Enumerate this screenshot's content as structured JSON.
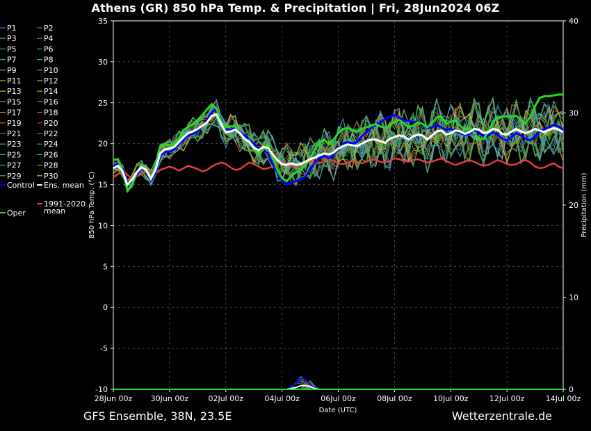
{
  "title": "Athens  (GR)  850 hPa Temp. & Precipitation | Fri, 28Jun2024 06Z",
  "footer": {
    "left": "GFS Ensemble, 38N, 23.5E",
    "right": "Wetterzentrale.de"
  },
  "chart_data": {
    "type": "line",
    "xlabel": "Date (UTC)",
    "ylabel": "850 hPa Temp. (°C)",
    "y2label": "Precipitation (mm)",
    "ylim": [
      -10,
      35
    ],
    "y2lim": [
      0,
      40
    ],
    "yticks": [
      -10,
      -5,
      0,
      5,
      10,
      15,
      20,
      25,
      30,
      35
    ],
    "y2ticks": [
      0,
      10,
      20,
      30,
      40
    ],
    "xlim": [
      0,
      96
    ],
    "xticks": [
      {
        "t": 0,
        "label": "28Jun 00z"
      },
      {
        "t": 12,
        "label": "30Jun 00z"
      },
      {
        "t": 24,
        "label": "02Jul 00z"
      },
      {
        "t": 36,
        "label": "04Jul 00z"
      },
      {
        "t": 48,
        "label": "06Jul 00z"
      },
      {
        "t": 60,
        "label": "08Jul 00z"
      },
      {
        "t": 72,
        "label": "10Jul 00z"
      },
      {
        "t": 84,
        "label": "12Jul 00z"
      },
      {
        "t": 96,
        "label": "14Jul 00z"
      }
    ],
    "grid": true,
    "legend_position": "left",
    "colors": {
      "control": "#0000ff",
      "ens_mean": "#ffffff",
      "clim": "#e04040",
      "oper": "#22dd22",
      "perturbed": [
        "#3a6fe0",
        "#3f7fc8",
        "#2fa8a8",
        "#2f9f9f",
        "#38b0b0",
        "#2fb090",
        "#30c070",
        "#3cc048",
        "#40d040",
        "#30c030",
        "#c0c040",
        "#d0b040",
        "#d8b020",
        "#d89a30",
        "#d09070",
        "#c87050",
        "#e07a3a",
        "#c85a28",
        "#e04a3a",
        "#c03838",
        "#3a78d8",
        "#2a88c0",
        "#3ab0c8",
        "#2aa8b0",
        "#2ab898",
        "#30b878",
        "#2ab858",
        "#38c050",
        "#48c040",
        "#d8c030"
      ]
    },
    "legend": [
      {
        "label": "P1"
      },
      {
        "label": "P2"
      },
      {
        "label": "P3"
      },
      {
        "label": "P4"
      },
      {
        "label": "P5"
      },
      {
        "label": "P6"
      },
      {
        "label": "P7"
      },
      {
        "label": "P8"
      },
      {
        "label": "P9"
      },
      {
        "label": "P10"
      },
      {
        "label": "P11"
      },
      {
        "label": "P12"
      },
      {
        "label": "P13"
      },
      {
        "label": "P14"
      },
      {
        "label": "P15"
      },
      {
        "label": "P16"
      },
      {
        "label": "P17"
      },
      {
        "label": "P18"
      },
      {
        "label": "P19"
      },
      {
        "label": "P20"
      },
      {
        "label": "P21"
      },
      {
        "label": "P22"
      },
      {
        "label": "P23"
      },
      {
        "label": "P24"
      },
      {
        "label": "P25"
      },
      {
        "label": "P26"
      },
      {
        "label": "P27"
      },
      {
        "label": "P28"
      },
      {
        "label": "P29"
      },
      {
        "label": "P30"
      },
      {
        "label": "Control"
      },
      {
        "label": "Ens. mean"
      },
      {
        "label": "1991-2020\nmean"
      },
      {
        "label": "Oper"
      }
    ],
    "ens_mean": [
      17,
      17.3,
      16.6,
      15,
      15.6,
      16.5,
      17.1,
      16.8,
      15.7,
      16.8,
      18.8,
      19.3,
      19.4,
      19.6,
      20.2,
      20.8,
      21.3,
      21.5,
      21.8,
      22.2,
      22.6,
      23.4,
      23.6,
      22.4,
      21.4,
      21.5,
      21.7,
      21.3,
      20.6,
      20.2,
      19.5,
      19.2,
      19.6,
      19.5,
      18.7,
      18,
      17.5,
      17.4,
      17.6,
      17.4,
      17.5,
      17.8,
      18.1,
      18.3,
      18.6,
      18.8,
      18.7,
      18.9,
      19.4,
      19.7,
      19.9,
      19.8,
      19.7,
      20,
      20.3,
      20.5,
      20.5,
      20.3,
      20.1,
      20.6,
      20.8,
      21,
      20.9,
      20.5,
      20.9,
      21.1,
      21,
      20.5,
      21,
      21.5,
      21.6,
      21.1,
      21.3,
      21.6,
      21.5,
      21.2,
      21.4,
      21.8,
      21.7,
      21.3,
      21.4,
      21.8,
      21.7,
      21.2,
      21.1,
      21.5,
      21.8,
      21.5,
      21.3,
      21.5,
      21.8,
      21.6,
      21.4,
      21.7,
      21.9,
      21.7,
      21.4
    ],
    "control": [
      17.2,
      17.6,
      16.9,
      15.2,
      15.5,
      16.2,
      17,
      16.8,
      15.5,
      16.4,
      18.5,
      19,
      19,
      19.3,
      20,
      20.5,
      21,
      21.2,
      21.5,
      22.2,
      22.8,
      23.8,
      24.3,
      23,
      21.8,
      21.7,
      21.9,
      21.4,
      21,
      20.5,
      20,
      19.3,
      19.2,
      18.8,
      17.6,
      16.5,
      15.5,
      15,
      15.3,
      15.4,
      15.6,
      16,
      16.8,
      17.7,
      18.2,
      18.5,
      18.2,
      18.6,
      19.3,
      20,
      20.2,
      20,
      20.2,
      20.9,
      21.4,
      21.9,
      22.3,
      22.6,
      23,
      23.3,
      23.5,
      23.2,
      22.8,
      22.8,
      22.6,
      22.7,
      22.4,
      21.9,
      22,
      22.3,
      22,
      21.7,
      21.8,
      21.5,
      21.3,
      21.1,
      21.2,
      21.6,
      21.4,
      20.9,
      21,
      21.4,
      21.1,
      20.6,
      20.4,
      20.8,
      21.3,
      21,
      20.6,
      20.4,
      20.9,
      21.5,
      21.8,
      22,
      22.3,
      22.1,
      21.7
    ],
    "oper": [
      18,
      18.1,
      16.6,
      14.3,
      15,
      16.5,
      17.3,
      16.6,
      15.8,
      17.5,
      19.7,
      20,
      19.8,
      19.9,
      20.7,
      21.7,
      22,
      22.4,
      22.9,
      23.5,
      24.2,
      24.8,
      24.3,
      22.8,
      22,
      22.1,
      22.1,
      21.1,
      20.5,
      20.4,
      19.3,
      18.7,
      19.3,
      20,
      18.3,
      16.8,
      15.8,
      15.4,
      16.1,
      16.5,
      16.8,
      17.4,
      18.2,
      19.3,
      20.1,
      20.5,
      19.9,
      20.5,
      21.3,
      21.8,
      21.9,
      21.6,
      21.5,
      21.8,
      22,
      22.2,
      22.4,
      22.1,
      21.9,
      22.2,
      22.7,
      22.9,
      22.5,
      22,
      22.2,
      22.6,
      22.4,
      22,
      22.5,
      23.2,
      23.3,
      22.4,
      22.7,
      22.8,
      22.2,
      21.7,
      21.9,
      21.4,
      20.5,
      20.6,
      21.5,
      22.6,
      23.2,
      23.3,
      23.3,
      23.3,
      23.4,
      22.9,
      22.5,
      23.3,
      24.6,
      25.6,
      25.8,
      25.8,
      25.9,
      26,
      26
    ],
    "clim": [
      15.9,
      16.3,
      16.7,
      16.2,
      15.7,
      16,
      16.3,
      16.7,
      16.5,
      16.3,
      16.8,
      17,
      17.2,
      17,
      16.7,
      17,
      17.3,
      17.1,
      16.9,
      16.6,
      16.8,
      17.2,
      17.5,
      17.7,
      17.5,
      17.1,
      16.8,
      16.9,
      17.3,
      17.7,
      17.5,
      17.2,
      16.9,
      17,
      17.2,
      17.5,
      17.7,
      17.5,
      17.2,
      17.3,
      17.4,
      17.6,
      17.8,
      17.7,
      17.6,
      17.9,
      18.1,
      17.9,
      17.6,
      17.5,
      17.7,
      17.9,
      17.8,
      17.6,
      17.8,
      18.1,
      18,
      17.8,
      17.7,
      17.9,
      18.2,
      18.1,
      17.9,
      17.8,
      18,
      18.1,
      17.9,
      17.7,
      17.8,
      18,
      18.2,
      17.9,
      17.6,
      17.4,
      17.6,
      17.8,
      18,
      17.8,
      17.5,
      17.3,
      17.4,
      17.7,
      18,
      17.8,
      17.5,
      17.4,
      17.5,
      17.8,
      18,
      17.7,
      17.2,
      17,
      17.1,
      17.4,
      17.6,
      17.2,
      17
    ],
    "precip": {
      "mean": [
        0,
        0,
        0,
        0,
        0,
        0,
        0,
        0,
        0,
        0,
        0,
        0,
        0,
        0,
        0,
        0,
        0,
        0,
        0,
        0,
        0,
        0,
        0,
        0,
        0,
        0,
        0,
        0,
        0,
        0,
        0,
        0,
        0,
        0,
        0,
        0,
        0,
        0,
        0.1,
        0.2,
        0.4,
        0.4,
        0.3,
        0.1,
        0,
        0,
        0,
        0,
        0,
        0,
        0,
        0,
        0,
        0,
        0,
        0,
        0,
        0,
        0,
        0,
        0,
        0,
        0,
        0,
        0,
        0,
        0,
        0,
        0,
        0,
        0,
        0,
        0,
        0,
        0,
        0,
        0,
        0,
        0,
        0,
        0,
        0,
        0,
        0,
        0,
        0,
        0,
        0,
        0,
        0,
        0,
        0,
        0,
        0,
        0,
        0,
        0
      ],
      "control": [
        0,
        0,
        0,
        0,
        0,
        0,
        0,
        0,
        0,
        0,
        0,
        0,
        0,
        0,
        0,
        0,
        0,
        0,
        0,
        0,
        0,
        0,
        0,
        0,
        0,
        0,
        0,
        0,
        0,
        0,
        0,
        0,
        0,
        0,
        0,
        0,
        0,
        0,
        0.3,
        0.6,
        1.2,
        1.1,
        0.5,
        0.2,
        0,
        0,
        0,
        0,
        0,
        0,
        0,
        0,
        0,
        0,
        0,
        0,
        0,
        0,
        0,
        0,
        0,
        0,
        0,
        0,
        0,
        0,
        0,
        0,
        0,
        0,
        0,
        0,
        0,
        0,
        0,
        0,
        0,
        0,
        0,
        0,
        0,
        0,
        0,
        0,
        0,
        0,
        0,
        0,
        0,
        0,
        0,
        0,
        0,
        0,
        0,
        0,
        0
      ]
    }
  }
}
